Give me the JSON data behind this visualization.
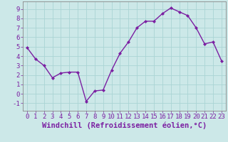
{
  "x": [
    0,
    1,
    2,
    3,
    4,
    5,
    6,
    7,
    8,
    9,
    10,
    11,
    12,
    13,
    14,
    15,
    16,
    17,
    18,
    19,
    20,
    21,
    22,
    23
  ],
  "y": [
    4.9,
    3.7,
    3.0,
    1.7,
    2.2,
    2.3,
    2.3,
    -0.8,
    0.3,
    0.4,
    2.5,
    4.3,
    5.5,
    7.0,
    7.7,
    7.7,
    8.5,
    9.1,
    8.7,
    8.3,
    7.0,
    5.3,
    5.5,
    3.5
  ],
  "line_color": "#7b1fa2",
  "marker": "D",
  "marker_size": 2.0,
  "line_width": 1.0,
  "bg_color": "#cce8e8",
  "grid_color": "#aad4d4",
  "xlabel": "Windchill (Refroidissement éolien,°C)",
  "xlabel_fontsize": 7.5,
  "xlim": [
    -0.5,
    23.5
  ],
  "ylim": [
    -1.8,
    9.8
  ],
  "yticks": [
    -1,
    0,
    1,
    2,
    3,
    4,
    5,
    6,
    7,
    8,
    9
  ],
  "xticks": [
    0,
    1,
    2,
    3,
    4,
    5,
    6,
    7,
    8,
    9,
    10,
    11,
    12,
    13,
    14,
    15,
    16,
    17,
    18,
    19,
    20,
    21,
    22,
    23
  ],
  "tick_fontsize": 6.5,
  "tick_color": "#7b1fa2",
  "axis_color": "#7b1fa2",
  "label_color": "#7b1fa2",
  "spine_color": "#888888"
}
